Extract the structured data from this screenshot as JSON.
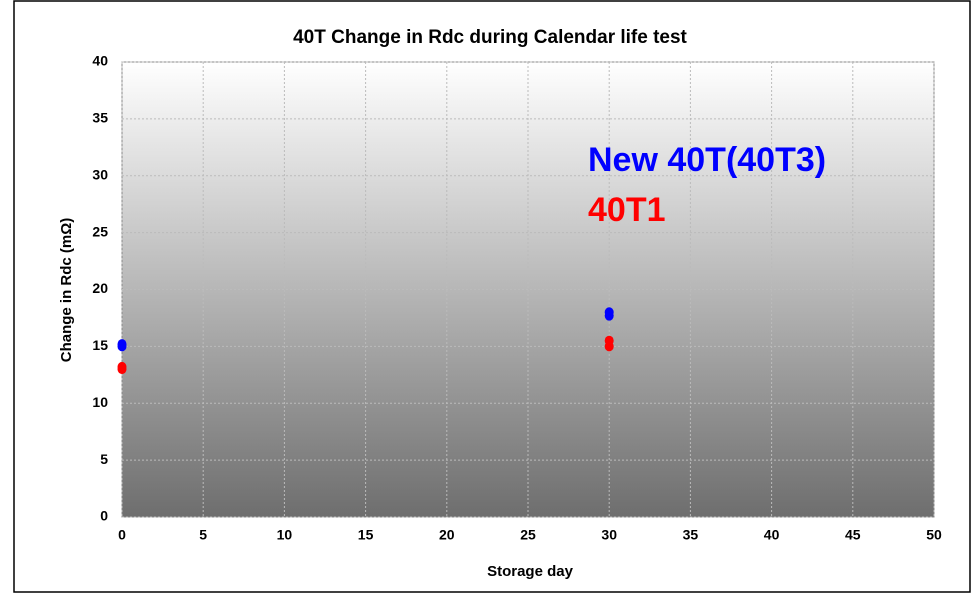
{
  "chart_data": {
    "type": "scatter",
    "title": "40T Change in Rdc during Calendar life test",
    "x_label": "Storage day",
    "y_label": "Change in Rdc (mΩ)",
    "xlim": [
      0,
      50
    ],
    "xticks": [
      0,
      5,
      10,
      15,
      20,
      25,
      30,
      35,
      40,
      45,
      50
    ],
    "ylim": [
      0,
      40
    ],
    "yticks": [
      0,
      5,
      10,
      15,
      20,
      25,
      30,
      35,
      40
    ],
    "grid": true,
    "series": [
      {
        "name": "New 40T(40T3)",
        "color": "#0000ff",
        "x": [
          0,
          0,
          30,
          30
        ],
        "values": [
          15.0,
          15.2,
          17.7,
          18.0
        ]
      },
      {
        "name": "40T1",
        "color": "#ff0000",
        "x": [
          0,
          0,
          30,
          30
        ],
        "values": [
          13.0,
          13.2,
          15.0,
          15.5
        ]
      }
    ]
  }
}
